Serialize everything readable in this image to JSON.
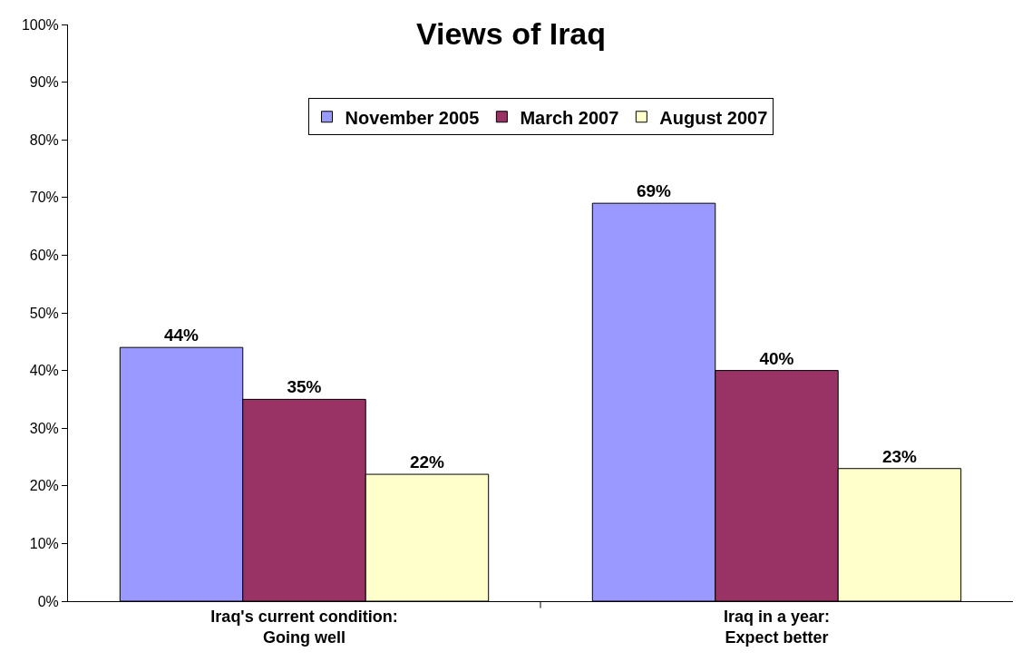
{
  "chart_data": {
    "type": "bar",
    "title": "Views of Iraq",
    "categories": [
      "Iraq's current condition:\nGoing well",
      "Iraq in a year:\nExpect better"
    ],
    "series": [
      {
        "name": "November 2005",
        "color": "#9999ff",
        "values": [
          44,
          69
        ],
        "value_labels": [
          "44%",
          "69%"
        ]
      },
      {
        "name": "March 2007",
        "color": "#993366",
        "values": [
          35,
          40
        ],
        "value_labels": [
          "35%",
          "40%"
        ]
      },
      {
        "name": "August 2007",
        "color": "#ffffcc",
        "values": [
          22,
          23
        ],
        "value_labels": [
          "22%",
          "23%"
        ]
      }
    ],
    "ylim": [
      0,
      100
    ],
    "yticks": [
      {
        "value": 0,
        "label": "0%"
      },
      {
        "value": 10,
        "label": "10%"
      },
      {
        "value": 20,
        "label": "20%"
      },
      {
        "value": 30,
        "label": "30%"
      },
      {
        "value": 40,
        "label": "40%"
      },
      {
        "value": 50,
        "label": "50%"
      },
      {
        "value": 60,
        "label": "60%"
      },
      {
        "value": 70,
        "label": "70%"
      },
      {
        "value": 80,
        "label": "80%"
      },
      {
        "value": 90,
        "label": "90%"
      },
      {
        "value": 100,
        "label": "100%"
      }
    ],
    "grid": false,
    "legend": "top"
  }
}
